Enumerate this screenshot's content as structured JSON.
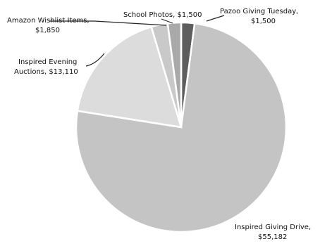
{
  "chart_data": {
    "type": "pie",
    "title": "",
    "values": [
      1500,
      55182,
      13110,
      1850,
      1500
    ],
    "slices": [
      {
        "label": "Pazoo Giving Tuesday,",
        "value_text": "$1,500",
        "value": 1500,
        "color": "#5d5d5d"
      },
      {
        "label": "Inspired Giving Drive,",
        "value_text": "$55,182",
        "value": 55182,
        "color": "#c4c4c4"
      },
      {
        "label": "Inspired Evening Auctions, $13,110",
        "value_text": "",
        "value": 13110,
        "color": "#dcdcdc"
      },
      {
        "label": "Amazon Wishlist Items,",
        "value_text": "$1,850",
        "value": 1850,
        "color": "#c9c9c9"
      },
      {
        "label": "School Photos, $1,500",
        "value_text": "",
        "value": 1500,
        "color": "#a9a9a9"
      }
    ],
    "label_lines": {
      "pazoo": [
        "Pazoo Giving Tuesday,",
        "$1,500"
      ],
      "drive": [
        "Inspired Giving Drive,",
        "$55,182"
      ],
      "auctions": [
        "Inspired Evening",
        "Auctions, $13,110"
      ],
      "amazon": [
        "Amazon Wishlist Items,",
        "$1,850"
      ],
      "school": [
        "School Photos, $1,500"
      ]
    }
  }
}
